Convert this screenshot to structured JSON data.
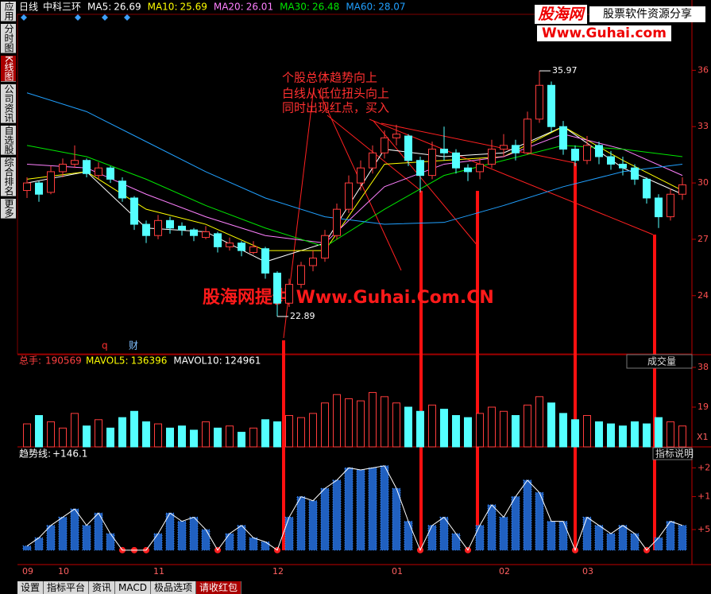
{
  "header": {
    "period": "日线",
    "stock": "中科三环"
  },
  "side_tabs": [
    "应用",
    "分时图",
    "K线图",
    "公司资讯",
    "自选股",
    "综合排名",
    "更多"
  ],
  "bottom_tabs": [
    "设置",
    "指标平台",
    "资讯",
    "MACD",
    "极品选项",
    "请收红包"
  ],
  "watermark": {
    "brand": "股海网",
    "slogan": "股票软件资源分享",
    "url": "Www.Guhai.com"
  },
  "overlay_text": "股海网提供 Www.Guhai.Com.CN",
  "annotation": [
    "个股总体趋势向上",
    "白线从低位扭头向上",
    "同时出现红点，买入"
  ],
  "chart_data": {
    "type": "candlestick",
    "categories": [
      "09",
      null,
      null,
      "10",
      null,
      null,
      null,
      null,
      null,
      null,
      null,
      "11",
      null,
      null,
      null,
      null,
      null,
      null,
      null,
      null,
      null,
      "12",
      null,
      null,
      null,
      null,
      null,
      null,
      null,
      null,
      null,
      "01",
      null,
      null,
      null,
      null,
      null,
      null,
      null,
      null,
      "02",
      null,
      null,
      null,
      null,
      null,
      null,
      "03",
      null,
      null,
      null,
      null,
      null,
      null,
      null,
      null
    ],
    "candles": [
      [
        29.6,
        30.3,
        29.2,
        30.0
      ],
      [
        30.0,
        30.1,
        29.0,
        29.4
      ],
      [
        29.5,
        30.9,
        29.4,
        30.6
      ],
      [
        30.6,
        31.3,
        30.3,
        31.0
      ],
      [
        31.0,
        32.0,
        30.8,
        31.2
      ],
      [
        31.2,
        31.3,
        30.3,
        30.5
      ],
      [
        30.4,
        31.1,
        30.2,
        30.8
      ],
      [
        30.8,
        30.9,
        30.0,
        30.2
      ],
      [
        30.1,
        30.3,
        29.0,
        29.2
      ],
      [
        29.2,
        29.3,
        27.5,
        27.8
      ],
      [
        27.8,
        28.0,
        26.8,
        27.2
      ],
      [
        27.2,
        28.3,
        27.0,
        28.0
      ],
      [
        28.0,
        28.2,
        27.3,
        27.6
      ],
      [
        27.7,
        27.9,
        27.2,
        27.5
      ],
      [
        27.5,
        27.6,
        26.9,
        27.2
      ],
      [
        27.1,
        27.7,
        27.0,
        27.4
      ],
      [
        27.3,
        27.4,
        26.3,
        26.6
      ],
      [
        26.6,
        27.1,
        26.4,
        26.8
      ],
      [
        26.8,
        26.9,
        26.1,
        26.4
      ],
      [
        26.3,
        26.9,
        26.2,
        26.6
      ],
      [
        26.5,
        26.6,
        24.9,
        25.2
      ],
      [
        25.2,
        25.3,
        22.89,
        23.6
      ],
      [
        23.6,
        24.9,
        23.4,
        24.6
      ],
      [
        24.6,
        25.8,
        24.4,
        25.6
      ],
      [
        25.6,
        26.4,
        25.3,
        26.0
      ],
      [
        26.0,
        27.5,
        25.8,
        27.2
      ],
      [
        27.2,
        28.9,
        27.0,
        28.6
      ],
      [
        28.6,
        30.4,
        28.4,
        30.0
      ],
      [
        30.0,
        31.2,
        29.6,
        30.8
      ],
      [
        30.8,
        32.0,
        30.5,
        31.6
      ],
      [
        31.6,
        32.8,
        31.3,
        32.4
      ],
      [
        32.4,
        33.1,
        32.0,
        32.6
      ],
      [
        32.5,
        32.6,
        30.9,
        31.2
      ],
      [
        31.2,
        31.4,
        29.5,
        30.4
      ],
      [
        30.4,
        32.2,
        30.2,
        31.8
      ],
      [
        31.8,
        33.0,
        31.2,
        31.6
      ],
      [
        31.6,
        31.8,
        30.5,
        30.8
      ],
      [
        30.8,
        31.0,
        30.1,
        30.6
      ],
      [
        30.6,
        31.3,
        30.2,
        31.0
      ],
      [
        31.0,
        32.3,
        30.8,
        31.8
      ],
      [
        31.8,
        32.6,
        31.4,
        32.0
      ],
      [
        32.0,
        32.3,
        31.2,
        31.6
      ],
      [
        31.6,
        33.8,
        31.5,
        33.4
      ],
      [
        33.4,
        35.97,
        33.2,
        35.2
      ],
      [
        35.2,
        35.4,
        32.7,
        33.0
      ],
      [
        33.0,
        33.3,
        31.5,
        31.8
      ],
      [
        31.8,
        32.0,
        30.9,
        31.2
      ],
      [
        31.2,
        32.5,
        31.0,
        32.0
      ],
      [
        32.0,
        32.2,
        31.0,
        31.4
      ],
      [
        31.4,
        31.7,
        30.7,
        31.0
      ],
      [
        31.0,
        31.4,
        30.4,
        30.8
      ],
      [
        30.8,
        31.0,
        29.9,
        30.2
      ],
      [
        30.2,
        30.3,
        28.9,
        29.2
      ],
      [
        29.2,
        29.4,
        27.6,
        28.2
      ],
      [
        28.2,
        29.7,
        28.0,
        29.4
      ],
      [
        29.4,
        30.3,
        29.1,
        29.9
      ]
    ],
    "up_color": "#ff3c3c",
    "down_color": "#54ffff",
    "ylim": [
      20.9,
      38.98
    ],
    "yticks": [
      24,
      27,
      30,
      33,
      36
    ],
    "markers": [
      "q",
      "财"
    ],
    "ma_index": [
      0,
      5,
      10,
      15,
      20,
      25,
      30,
      35,
      40,
      45,
      50,
      55
    ],
    "ma_series": [
      {
        "name": "MA5:",
        "value": 26.69,
        "color": "#ffffff",
        "values": [
          30.0,
          30.6,
          27.6,
          27.4,
          25.8,
          26.8,
          31.8,
          31.4,
          31.6,
          33.0,
          30.8,
          29.4
        ]
      },
      {
        "name": "MA10:",
        "value": 25.69,
        "color": "#ffff00",
        "values": [
          30.2,
          30.6,
          28.6,
          27.8,
          26.4,
          26.4,
          31.0,
          31.2,
          31.4,
          33.0,
          31.2,
          29.6
        ]
      },
      {
        "name": "MA20:",
        "value": 26.01,
        "color": "#ff80ff",
        "values": [
          31.0,
          30.8,
          29.4,
          28.2,
          27.2,
          26.8,
          29.8,
          31.0,
          31.4,
          32.6,
          31.8,
          30.4
        ]
      },
      {
        "name": "MA30:",
        "value": 26.48,
        "color": "#00e600",
        "values": [
          32.0,
          31.4,
          30.2,
          28.8,
          27.6,
          26.6,
          28.6,
          30.4,
          31.2,
          32.0,
          31.8,
          31.4
        ]
      },
      {
        "name": "MA60:",
        "value": 28.07,
        "color": "#20a0ff",
        "values": [
          34.8,
          33.8,
          32.2,
          30.6,
          29.2,
          28.2,
          27.8,
          27.9,
          28.8,
          29.8,
          30.6,
          31.0
        ]
      }
    ]
  },
  "volume": {
    "label": "总手:",
    "total": 190569,
    "ma_labels": [
      {
        "name": "MAVOL5:",
        "value": 136396,
        "color": "#ffff00"
      },
      {
        "name": "MAVOL10:",
        "value": 124961,
        "color": "#ffffff"
      }
    ],
    "button": "成交量",
    "unit": "X1",
    "values": [
      110000,
      150000,
      120000,
      90000,
      160000,
      100000,
      130000,
      90000,
      140000,
      170000,
      120000,
      110000,
      90000,
      100000,
      80000,
      120000,
      90000,
      100000,
      70000,
      90000,
      130000,
      120000,
      150000,
      140000,
      160000,
      210000,
      250000,
      230000,
      220000,
      260000,
      240000,
      210000,
      190000,
      170000,
      200000,
      180000,
      150000,
      140000,
      160000,
      190000,
      170000,
      150000,
      200000,
      240000,
      210000,
      160000,
      130000,
      150000,
      120000,
      110000,
      100000,
      120000,
      110000,
      140000,
      120000,
      100000
    ],
    "ylim": [
      0,
      380000
    ],
    "yticks": [
      {
        "value": 380000,
        "label": "38"
      },
      {
        "value": 190000,
        "label": "19"
      }
    ]
  },
  "indicator": {
    "label": "趋势线:",
    "value": {
      "value": 146.1,
      "label": "+146.1"
    },
    "button": "指标说明",
    "values": [
      10,
      30,
      60,
      80,
      100,
      60,
      90,
      40,
      0,
      0,
      0,
      40,
      90,
      70,
      80,
      50,
      0,
      40,
      60,
      30,
      20,
      0,
      80,
      130,
      120,
      150,
      170,
      200,
      195,
      200,
      205,
      150,
      70,
      0,
      60,
      80,
      40,
      0,
      60,
      110,
      80,
      130,
      170,
      140,
      70,
      70,
      0,
      80,
      60,
      40,
      60,
      40,
      0,
      30,
      70,
      60
    ],
    "ylim": [
      -10,
      220
    ],
    "yticks": [
      {
        "value": 200,
        "label": "+2"
      },
      {
        "value": 130,
        "label": "+1"
      },
      {
        "value": 50,
        "label": "+5"
      }
    ]
  }
}
